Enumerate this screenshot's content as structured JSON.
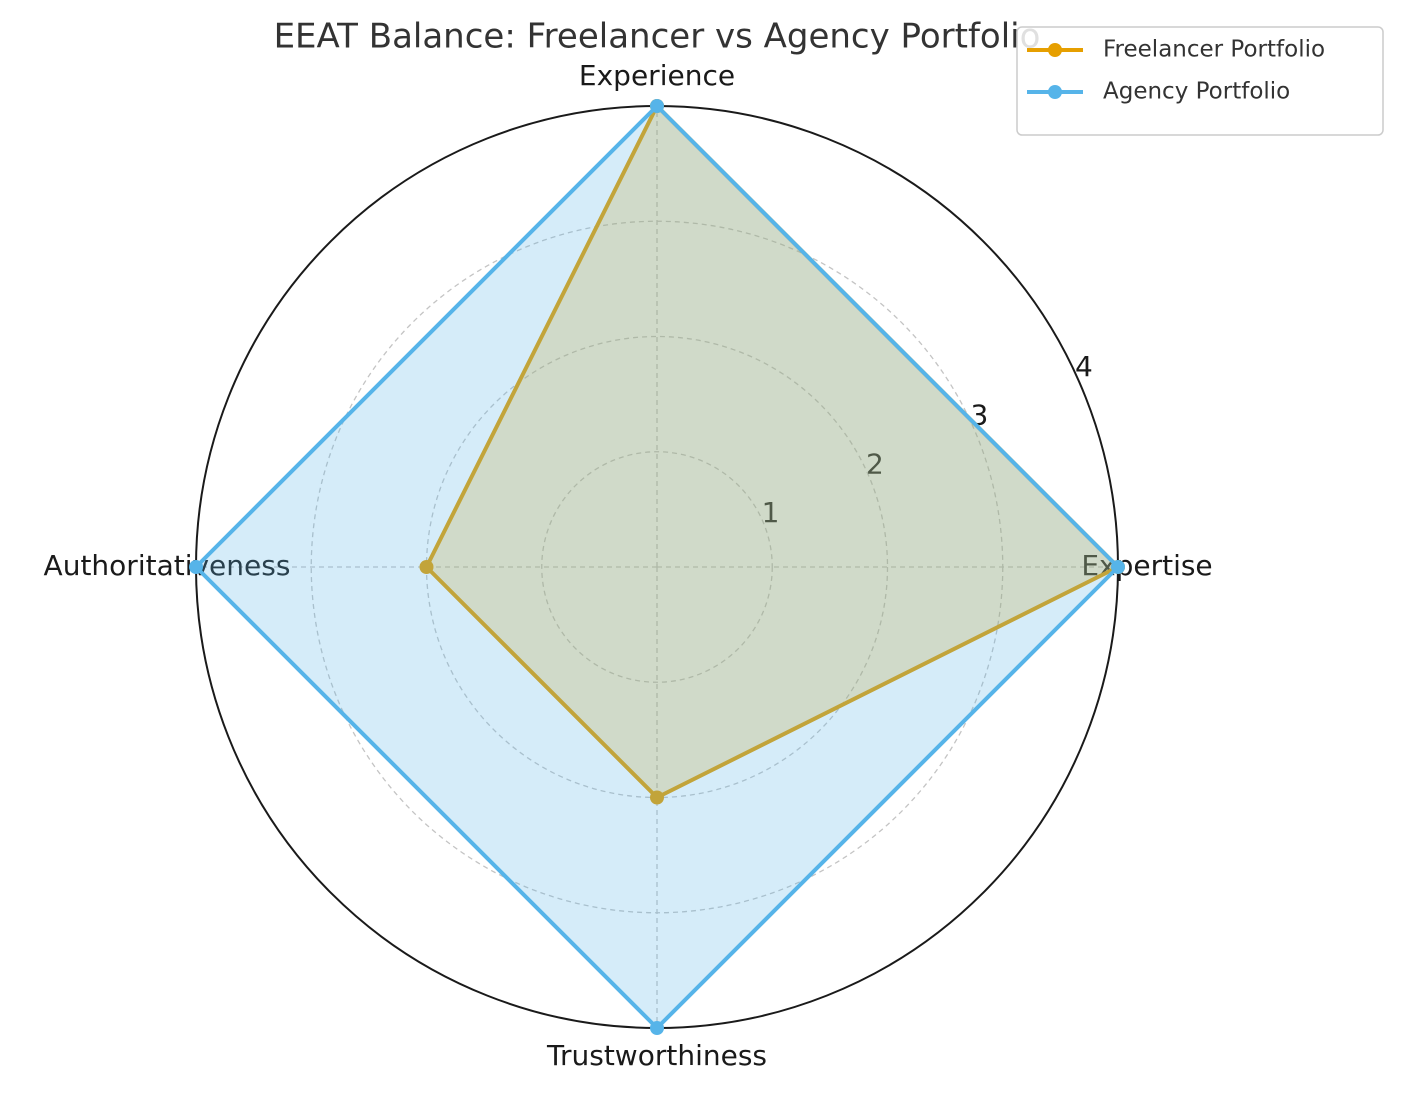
{
  "chart_data": {
    "type": "radar",
    "title": "EEAT Balance: Freelancer vs Agency Portfolio",
    "categories": [
      "Expertise",
      "Experience",
      "Authoritativeness",
      "Trustworthiness"
    ],
    "series": [
      {
        "name": "Freelancer Portfolio",
        "color": "#e69f00",
        "values": [
          4,
          4,
          2,
          2
        ]
      },
      {
        "name": "Agency Portfolio",
        "color": "#56b4e9",
        "values": [
          4,
          4,
          4,
          4
        ]
      }
    ],
    "ylim": [
      0,
      4
    ],
    "yticks": [
      1,
      2,
      3,
      4
    ],
    "grid": true,
    "legend": "upper right"
  }
}
